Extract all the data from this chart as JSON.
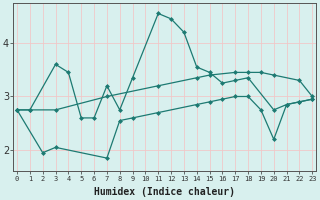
{
  "xlabel": "Humidex (Indice chaleur)",
  "bg_color": "#d8f0ee",
  "line_color": "#1d7a72",
  "grid_color": "#f0c8c8",
  "x_ticks": [
    0,
    1,
    2,
    3,
    4,
    5,
    6,
    7,
    8,
    9,
    10,
    11,
    12,
    13,
    14,
    15,
    16,
    17,
    18,
    19,
    20,
    21,
    22,
    23
  ],
  "y_ticks": [
    2,
    3,
    4
  ],
  "xlim": [
    -0.3,
    23.3
  ],
  "ylim": [
    1.6,
    4.75
  ],
  "line1_x": [
    0,
    1,
    3,
    4,
    5,
    6,
    7,
    8,
    9,
    11,
    12,
    13,
    14,
    15,
    16,
    17,
    18,
    20,
    21,
    22,
    23
  ],
  "line1_y": [
    2.75,
    2.75,
    3.6,
    3.45,
    2.6,
    2.6,
    3.2,
    2.75,
    3.35,
    4.55,
    4.45,
    4.2,
    3.55,
    3.45,
    3.25,
    3.3,
    3.35,
    2.75,
    2.85,
    2.9,
    2.95
  ],
  "line2_x": [
    0,
    1,
    3,
    7,
    11,
    14,
    15,
    17,
    18,
    19,
    20,
    22,
    23
  ],
  "line2_y": [
    2.75,
    2.75,
    2.75,
    3.0,
    3.2,
    3.35,
    3.4,
    3.45,
    3.45,
    3.45,
    3.4,
    3.3,
    3.0
  ],
  "line3_x": [
    0,
    2,
    3,
    7,
    8,
    9,
    11,
    14,
    15,
    16,
    17,
    18,
    19,
    20,
    21,
    22,
    23
  ],
  "line3_y": [
    2.75,
    1.95,
    2.05,
    1.85,
    2.55,
    2.6,
    2.7,
    2.85,
    2.9,
    2.95,
    3.0,
    3.0,
    2.75,
    2.2,
    2.85,
    2.9,
    2.95
  ]
}
